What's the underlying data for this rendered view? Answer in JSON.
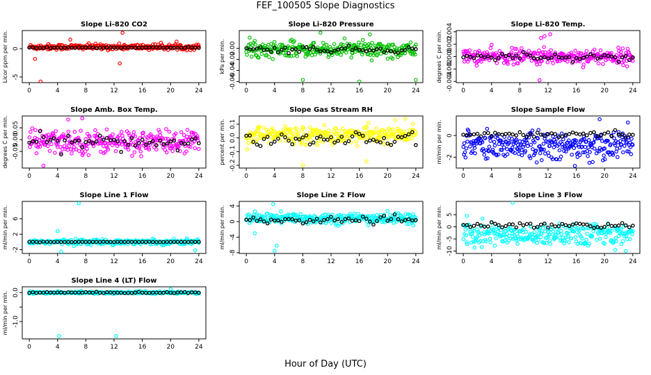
{
  "title": "FEF_100505  Slope Diagnostics",
  "xlabel": "Hour of Day (UTC)",
  "chart_data": [
    {
      "type": "scatter",
      "title": "Slope Li-820 CO2",
      "ylabel": "Licor ppm per min.",
      "color": "#ff0000",
      "xlim": [
        -1,
        25
      ],
      "ylim": [
        -6,
        3.2
      ],
      "yticks": [
        -5,
        0
      ],
      "xticks": [
        0,
        4,
        8,
        12,
        16,
        20,
        24
      ],
      "spread": 0.45,
      "mean": 0.3,
      "outliers": [
        {
          "x": 13.2,
          "y": 2.8
        },
        {
          "x": 0.8,
          "y": -1.8
        },
        {
          "x": 1.6,
          "y": -5.8
        },
        {
          "x": 12.8,
          "y": -2.6
        },
        {
          "x": 5.8,
          "y": 1.6
        }
      ],
      "black": {
        "mean": 0.2,
        "spread": 0.1
      }
    },
    {
      "type": "scatter",
      "title": "Slope Li-820 Pressure",
      "ylabel": "kPa per min.",
      "color": "#00c000",
      "xlim": [
        -1,
        25
      ],
      "ylim": [
        -0.062,
        0.032
      ],
      "yticks": [
        -0.06,
        -0.04,
        -0.02,
        0
      ],
      "xticks": [
        0,
        4,
        8,
        12,
        16,
        20,
        24
      ],
      "spread": 0.012,
      "mean": -0.002,
      "outliers": [
        {
          "x": 8,
          "y": -0.057
        },
        {
          "x": 16,
          "y": -0.06
        },
        {
          "x": 24,
          "y": -0.057
        },
        {
          "x": 17.5,
          "y": 0.025
        },
        {
          "x": 10.5,
          "y": 0.028
        }
      ],
      "black": {
        "mean": -0.002,
        "spread": 0.006
      }
    },
    {
      "type": "scatter",
      "title": "Slope Li-820 Temp.",
      "ylabel": "degrees C per min.",
      "color": "#ff00ff",
      "xlim": [
        -1,
        25
      ],
      "ylim": [
        -0.0042,
        0.0042
      ],
      "yticks": [
        -0.004,
        -0.002,
        0,
        0.002,
        0.004
      ],
      "xticks": [
        0,
        4,
        8,
        12,
        16,
        20,
        24
      ],
      "spread": 0.0011,
      "mean": 0.0,
      "outliers": [
        {
          "x": 11.5,
          "y": 0.0033
        },
        {
          "x": 10.8,
          "y": -0.0038
        },
        {
          "x": 12.3,
          "y": 0.0036
        },
        {
          "x": 11,
          "y": 0.003
        }
      ],
      "black": {
        "mean": 0.0,
        "spread": 0.0006
      }
    },
    {
      "type": "scatter",
      "title": "Slope Amb. Box Temp.",
      "ylabel": "degrees C per min.",
      "color": "#ff00ff",
      "xlim": [
        -1,
        25
      ],
      "ylim": [
        -0.12,
        0.1
      ],
      "yticks": [
        -0.05,
        0,
        0.05
      ],
      "xticks": [
        0,
        4,
        8,
        12,
        16,
        20,
        24
      ],
      "spread": 0.045,
      "mean": -0.01,
      "outliers": [
        {
          "x": 7.5,
          "y": 0.09
        },
        {
          "x": 2,
          "y": -0.11
        },
        {
          "x": 5.5,
          "y": 0.085
        }
      ],
      "black": {
        "mean": -0.01,
        "spread": 0.035
      }
    },
    {
      "type": "scatter",
      "title": "Slope Gas Stream RH",
      "ylabel": "percent per min.",
      "color": "#ffff00",
      "xlim": [
        -1,
        25
      ],
      "ylim": [
        -0.22,
        0.16
      ],
      "yticks": [
        -0.2,
        -0.1,
        0,
        0.1
      ],
      "xticks": [
        0,
        4,
        8,
        12,
        16,
        20,
        24
      ],
      "spread": 0.06,
      "mean": 0.02,
      "outliers": [
        {
          "x": 8,
          "y": -0.2
        },
        {
          "x": 17,
          "y": -0.17
        },
        {
          "x": 22.5,
          "y": 0.14
        }
      ],
      "black": {
        "mean": 0.0,
        "spread": 0.05
      }
    },
    {
      "type": "scatter",
      "title": "Slope Sample Flow",
      "ylabel": "ml/min per min.",
      "color": "#0000ff",
      "xlim": [
        -1,
        25
      ],
      "ylim": [
        -3,
        1.8
      ],
      "yticks": [
        -2,
        0
      ],
      "xticks": [
        0,
        4,
        8,
        12,
        16,
        20,
        24
      ],
      "spread": 0.7,
      "mean": -0.5,
      "outliers": [
        {
          "x": 19.3,
          "y": 1.5
        },
        {
          "x": 15.8,
          "y": -2.8
        },
        {
          "x": 23.3,
          "y": 1.2
        }
      ],
      "black": {
        "mean": 0.1,
        "spread": 0.25
      }
    },
    {
      "type": "scatter",
      "title": "Slope Line 1 Flow",
      "ylabel": "ml/min per min.",
      "color": "#00ffff",
      "xlim": [
        -1,
        25
      ],
      "ylim": [
        -3,
        10.5
      ],
      "yticks": [
        -2,
        2,
        6
      ],
      "xticks": [
        0,
        4,
        8,
        12,
        16,
        20,
        24
      ],
      "spread": 0.6,
      "mean": 0.0,
      "outliers": [
        {
          "x": 7,
          "y": 10
        },
        {
          "x": 4.5,
          "y": -2.5
        },
        {
          "x": 23.5,
          "y": -2.2
        },
        {
          "x": 4,
          "y": 2.8
        }
      ],
      "black": {
        "mean": 0.0,
        "spread": 0.05
      }
    },
    {
      "type": "scatter",
      "title": "Slope Line 2 Flow",
      "ylabel": "ml/min per min.",
      "color": "#00ffff",
      "xlim": [
        -1,
        25
      ],
      "ylim": [
        -8.2,
        5.2
      ],
      "yticks": [
        -8,
        -4,
        0,
        4
      ],
      "xticks": [
        0,
        4,
        8,
        12,
        16,
        20,
        24
      ],
      "spread": 1.3,
      "mean": 0.8,
      "outliers": [
        {
          "x": 4,
          "y": -7.5
        },
        {
          "x": 4.3,
          "y": -6.2
        },
        {
          "x": 3.8,
          "y": 4.5
        },
        {
          "x": 1.2,
          "y": -3
        }
      ],
      "black": {
        "mean": 0.3,
        "spread": 0.8
      }
    },
    {
      "type": "scatter",
      "title": "Slope Line 3 Flow",
      "ylabel": "ml/min per min.",
      "color": "#00ffff",
      "xlim": [
        -1,
        25
      ],
      "ylim": [
        -11,
        10.5
      ],
      "yticks": [
        -10,
        -5,
        0,
        5
      ],
      "xticks": [
        0,
        4,
        8,
        12,
        16,
        20,
        24
      ],
      "spread": 2.5,
      "mean": -1.5,
      "outliers": [
        {
          "x": 7,
          "y": 10
        },
        {
          "x": 21.5,
          "y": -9.5
        },
        {
          "x": 23,
          "y": -10
        },
        {
          "x": 0.5,
          "y": 4.5
        }
      ],
      "black": {
        "mean": 0.5,
        "spread": 1.2
      }
    },
    {
      "type": "scatter",
      "title": "Slope Line 4 (LT) Flow",
      "ylabel": "ml/min per min.",
      "color": "#00ffff",
      "xlim": [
        -1,
        25
      ],
      "ylim": [
        -1.6,
        0.2
      ],
      "yticks": [
        -1,
        -0.5,
        0
      ],
      "yticklabels": [
        "-1.0",
        "",
        "0.0"
      ],
      "xticks": [
        0,
        4,
        8,
        12,
        16,
        20,
        24
      ],
      "spread": 0.035,
      "mean": 0.0,
      "outliers": [
        {
          "x": 4.2,
          "y": -1.5
        },
        {
          "x": 12.3,
          "y": -1.5
        },
        {
          "x": 20,
          "y": 0.12
        }
      ],
      "black": {
        "mean": 0.0,
        "spread": 0.02
      }
    }
  ]
}
